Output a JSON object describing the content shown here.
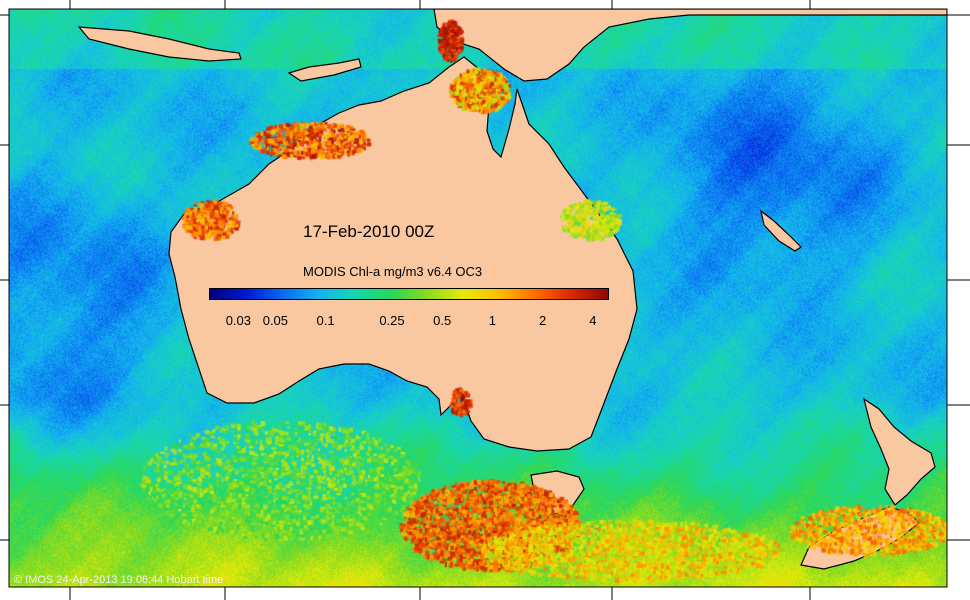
{
  "map": {
    "date_label": "17-Feb-2010 00Z",
    "colors": {
      "land": "#fac8a0",
      "coast": "#000000"
    }
  },
  "legend": {
    "title": "MODIS Chl-a mg/m3 v6.4 OC3",
    "colormap": [
      "#00007a",
      "#0019d6",
      "#0a6cf0",
      "#14b4f0",
      "#19d7b4",
      "#28d75a",
      "#8cdc1e",
      "#e6eb0a",
      "#ffbe00",
      "#ff6e00",
      "#dc2800",
      "#8c0a00"
    ],
    "ticks": [
      "0.03",
      "0.05",
      "0.1",
      "0.25",
      "0.5",
      "1",
      "2",
      "4"
    ],
    "tick_values": [
      0.03,
      0.05,
      0.1,
      0.25,
      0.5,
      1,
      2,
      4
    ],
    "range": [
      0.02,
      5
    ],
    "scale": "log"
  },
  "credit": "© IMOS 24-Apr-2013 19:06:44 Hobart time"
}
